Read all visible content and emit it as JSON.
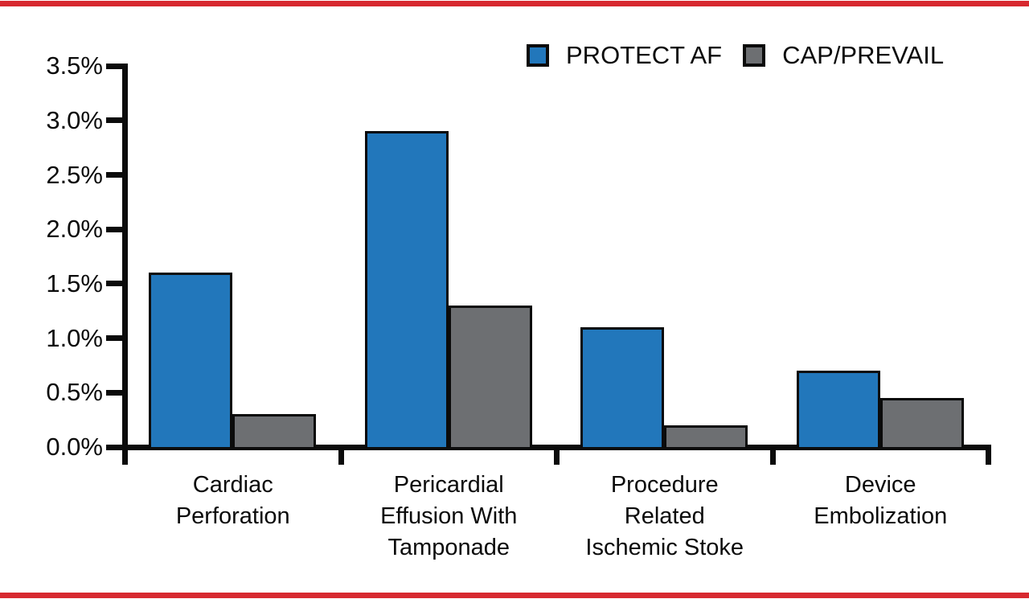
{
  "frame": {
    "border_color": "#D7282F"
  },
  "colors": {
    "axis_black": "#0b0b0b",
    "protect_af_blue": "#2277BB",
    "cap_prevail_gray": "#6D6F72"
  },
  "legend": {
    "items": [
      {
        "label": "PROTECT AF",
        "color": "#2277BB"
      },
      {
        "label": "CAP/PREVAIL",
        "color": "#6D6F72"
      }
    ]
  },
  "chart_data": {
    "type": "bar",
    "title": "",
    "xlabel": "",
    "ylabel": "",
    "categories": [
      "Cardiac Perforation",
      "Pericardial Effusion With Tamponade",
      "Procedure Related Ischemic Stoke",
      "Device Embolization"
    ],
    "category_lines": [
      [
        "Cardiac",
        "Perforation"
      ],
      [
        "Pericardial",
        "Effusion With",
        "Tamponade"
      ],
      [
        "Procedure",
        "Related",
        "Ischemic Stoke"
      ],
      [
        "Device",
        "Embolization"
      ]
    ],
    "series": [
      {
        "name": "PROTECT AF",
        "color": "#2277BB",
        "values": [
          1.6,
          2.9,
          1.1,
          0.7
        ]
      },
      {
        "name": "CAP/PREVAIL",
        "color": "#6D6F72",
        "values": [
          0.3,
          1.3,
          0.2,
          0.45
        ]
      }
    ],
    "ylim": [
      0,
      3.5
    ],
    "ytick_step": 0.5,
    "ytick_labels": [
      "0.0%",
      "0.5%",
      "1.0%",
      "1.5%",
      "2.0%",
      "2.5%",
      "3.0%",
      "3.5%"
    ],
    "grid": false,
    "legend_position": "top-right"
  }
}
